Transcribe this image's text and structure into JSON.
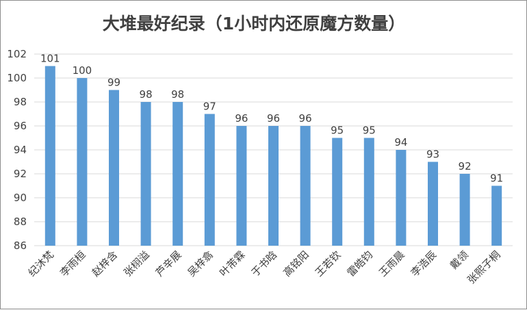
{
  "chart_data": {
    "type": "bar",
    "title": "大堆最好纪录（1小时内还原魔方数量）",
    "xlabel": "",
    "ylabel": "",
    "ylim": [
      86,
      102
    ],
    "ytick_step": 2,
    "grid": true,
    "legend": "none",
    "bar_color": "#5b9bd5",
    "categories": [
      "纪沐梵",
      "李雨桓",
      "赵梓含",
      "张栩溢",
      "芦辛展",
      "吴梓翕",
      "叶芾霖",
      "于书晗",
      "高铭阳",
      "王若钦",
      "雷皓钧",
      "王雨晨",
      "李浩辰",
      "戴领",
      "张熙子桐"
    ],
    "values": [
      101,
      100,
      99,
      98,
      98,
      97,
      96,
      96,
      96,
      95,
      95,
      94,
      93,
      92,
      91
    ]
  }
}
